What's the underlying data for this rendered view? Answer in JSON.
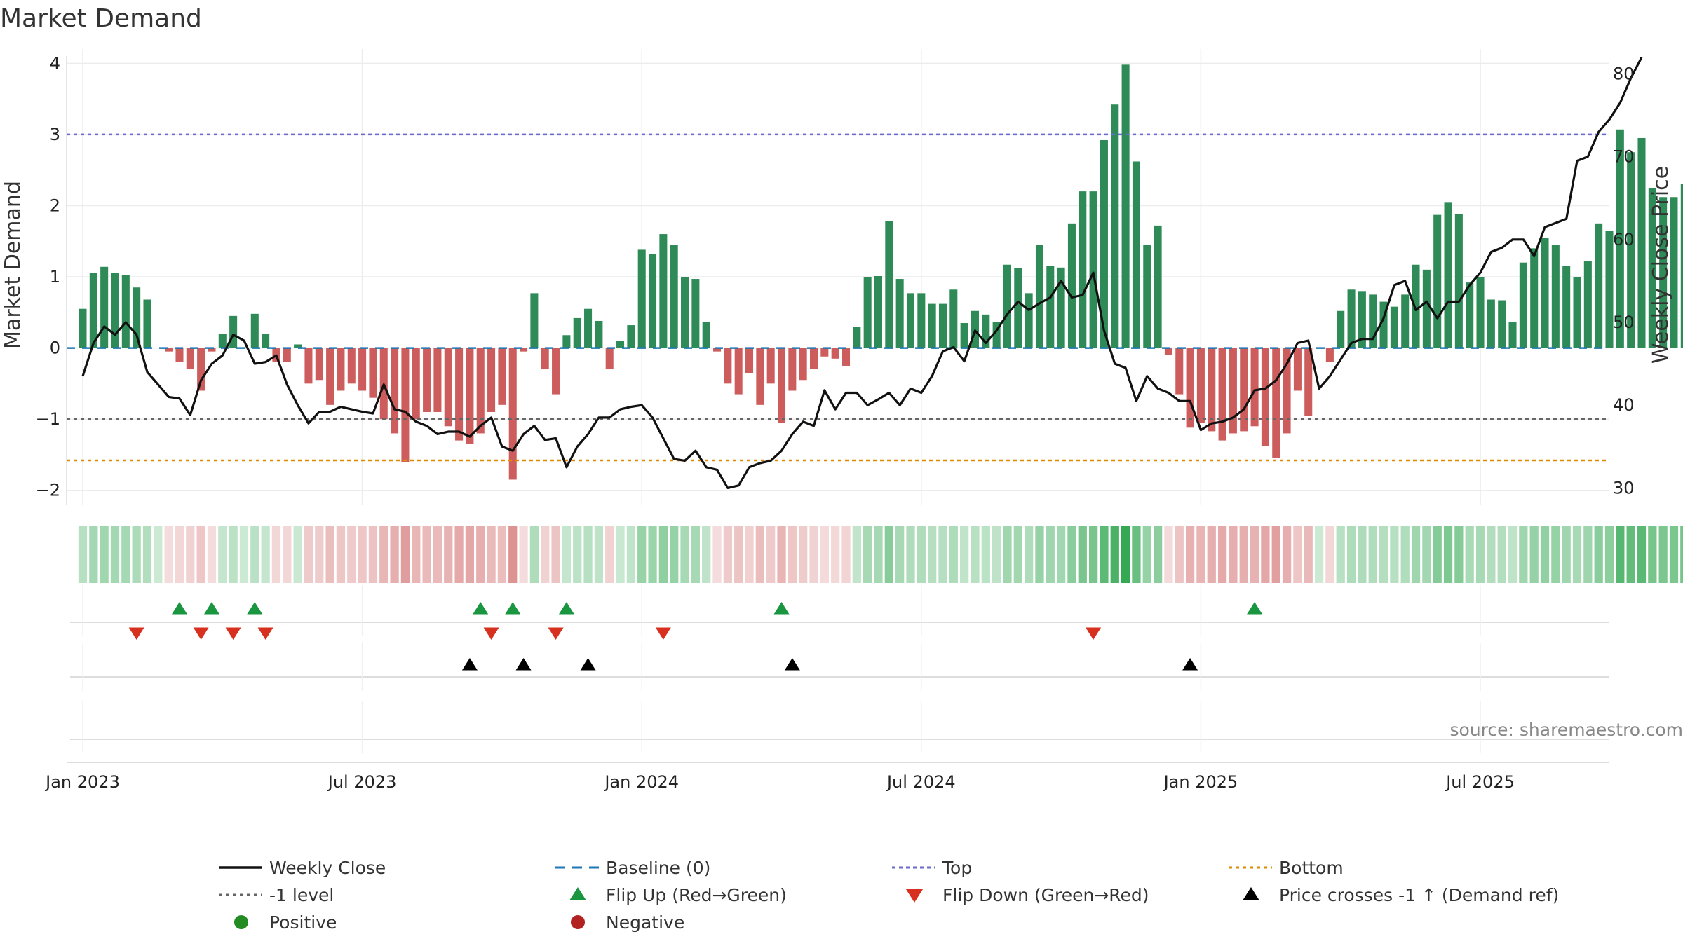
{
  "chart_data": {
    "type": "bar+line",
    "title": "Market Demand",
    "ylabel": "Market Demand",
    "y2label": "Weekly Close Price",
    "ylim": [
      -2.2,
      4.2
    ],
    "y2lim": [
      28,
      83
    ],
    "yticks": [
      4,
      3,
      2,
      1,
      0,
      -1,
      -2
    ],
    "yticks_labels": [
      "4",
      "3",
      "2",
      "1",
      "0",
      "−1",
      "−2"
    ],
    "y2ticks": [
      80,
      70,
      60,
      50,
      40,
      30
    ],
    "y2ticks_labels": [
      "80",
      "70",
      "60",
      "50",
      "40",
      "30"
    ],
    "xticks": [
      0,
      26,
      52,
      78,
      104,
      130
    ],
    "xticks_labels": [
      "Jan 2023",
      "Jul 2023",
      "Jan 2024",
      "Jul 2024",
      "Jan 2025",
      "Jul 2025"
    ],
    "x_range": [
      -1.5,
      142.0
    ],
    "reference_lines": {
      "top": 3.0,
      "minus_one": -1.0,
      "bottom": -1.58,
      "baseline": 0
    },
    "demand": [
      0.55,
      1.05,
      1.14,
      1.05,
      1.02,
      0.85,
      0.68,
      0,
      -0.05,
      -0.2,
      -0.3,
      -0.6,
      -0.05,
      0.2,
      0.45,
      0.0,
      0.48,
      0.2,
      -0.2,
      -0.2,
      0.05,
      -0.5,
      -0.45,
      -0.8,
      -0.6,
      -0.5,
      -0.6,
      -0.7,
      -1.0,
      -1.2,
      -1.6,
      -1.0,
      -0.9,
      -0.9,
      -1.1,
      -1.3,
      -1.35,
      -1.2,
      -0.9,
      -0.8,
      -1.85,
      -0.05,
      0.77,
      -0.3,
      -0.65,
      0.18,
      0.42,
      0.55,
      0.38,
      -0.3,
      0.1,
      0.32,
      1.38,
      1.32,
      1.6,
      1.45,
      1.0,
      0.97,
      0.37,
      -0.05,
      -0.5,
      -0.65,
      -0.35,
      -0.8,
      -0.5,
      -1.05,
      -0.6,
      -0.45,
      -0.3,
      -0.12,
      -0.15,
      -0.25,
      0.3,
      1.0,
      1.01,
      1.78,
      0.97,
      0.77,
      0.77,
      0.62,
      0.62,
      0.82,
      0.35,
      0.52,
      0.47,
      0.37,
      1.17,
      1.12,
      0.77,
      1.45,
      1.15,
      1.13,
      1.75,
      2.2,
      2.2,
      2.92,
      3.42,
      3.98,
      2.62,
      1.45,
      1.72,
      -0.1,
      -0.65,
      -1.12,
      -1.05,
      -1.17,
      -1.3,
      -1.2,
      -1.17,
      -1.1,
      -1.38,
      -1.55,
      -1.2,
      -0.6,
      -0.95,
      0,
      -0.2,
      0.52,
      0.82,
      0.8,
      0.75,
      0.65,
      0.58,
      0.75,
      1.17,
      1.1,
      1.87,
      2.05,
      1.88,
      0.92,
      1.0,
      0.68,
      0.67,
      0.37,
      1.2,
      1.4,
      1.55,
      1.45,
      1.15,
      1.0,
      1.22,
      1.75,
      1.65,
      3.07,
      2.75,
      2.95,
      2.25,
      2.12,
      2.12,
      2.3
    ],
    "weekly_close": [
      43.5,
      47.5,
      49.5,
      48.5,
      50.0,
      48.5,
      44.0,
      42.5,
      41.0,
      40.8,
      38.8,
      43.0,
      45.0,
      46.0,
      48.5,
      47.8,
      45.0,
      45.2,
      46.0,
      42.5,
      40.0,
      37.8,
      39.2,
      39.2,
      39.8,
      39.5,
      39.2,
      39.0,
      42.5,
      39.5,
      39.2,
      38.0,
      37.5,
      36.5,
      36.8,
      36.8,
      36.2,
      37.5,
      38.5,
      35.0,
      34.5,
      36.5,
      37.5,
      35.8,
      36.0,
      32.5,
      35.0,
      36.5,
      38.5,
      38.5,
      39.5,
      39.8,
      40.0,
      38.5,
      36.0,
      33.5,
      33.3,
      34.5,
      32.5,
      32.2,
      30.0,
      30.3,
      32.5,
      33.0,
      33.3,
      34.5,
      36.5,
      38.0,
      37.5,
      41.8,
      39.5,
      41.5,
      41.5,
      40.0,
      40.7,
      41.5,
      40.0,
      42.0,
      41.5,
      43.5,
      46.5,
      47.0,
      45.3,
      49.0,
      47.5,
      49.0,
      51.0,
      52.5,
      51.5,
      52.3,
      53.0,
      55.0,
      53.0,
      53.3,
      56.0,
      49.0,
      45.0,
      44.5,
      40.5,
      43.5,
      42.0,
      41.5,
      40.5,
      40.5,
      37.0,
      37.8,
      38.0,
      38.5,
      39.5,
      41.8,
      42.0,
      43.0,
      45.0,
      47.5,
      47.8,
      42.0,
      43.5,
      45.5,
      47.5,
      48.0,
      48.0,
      50.5,
      54.5,
      55.0,
      51.5,
      52.5,
      50.5,
      52.5,
      52.5,
      54.5,
      56.0,
      58.5,
      59.0,
      60.0,
      60.0,
      58.0,
      61.5,
      62.0,
      62.5,
      69.5,
      70.0,
      73.0,
      74.5,
      76.5,
      79.5,
      82.0
    ],
    "flip_up_weeks": [
      9,
      12,
      16,
      37,
      40,
      45,
      65,
      109
    ],
    "flip_down_weeks": [
      5,
      11,
      14,
      17,
      38,
      44,
      54,
      94
    ],
    "price_cross_weeks": [
      36,
      41,
      47,
      66,
      103
    ],
    "colors": {
      "bar_positive": "#2e8b57",
      "bar_negative": "#cd5c5c",
      "close_line": "#111111",
      "top_line": "#6a6acd",
      "minus_one_line": "#666666",
      "bottom_line": "#e08a00",
      "baseline": "#1f77b4",
      "flip_up": "#1a9641",
      "flip_down": "#d7301f",
      "price_cross": "#000000",
      "positive_dot": "#228b22",
      "negative_dot": "#b22222"
    },
    "legend": [
      {
        "label": "Weekly Close",
        "symbol": "line",
        "color": "#111111"
      },
      {
        "label": "Baseline (0)",
        "symbol": "dashline",
        "color": "#1f77b4"
      },
      {
        "label": "Top",
        "symbol": "dotline",
        "color": "#6a6acd"
      },
      {
        "label": "Bottom",
        "symbol": "dotline",
        "color": "#e08a00"
      },
      {
        "label": "-1 level",
        "symbol": "dotline",
        "color": "#666666"
      },
      {
        "label": "Flip Up (Red→Green)",
        "symbol": "triangle-up",
        "color": "#1a9641"
      },
      {
        "label": "Flip Down (Green→Red)",
        "symbol": "triangle-down",
        "color": "#d7301f"
      },
      {
        "label": "Price crosses -1 ↑ (Demand ref)",
        "symbol": "triangle-up",
        "color": "#000000"
      },
      {
        "label": "Positive",
        "symbol": "dot",
        "color": "#228b22"
      },
      {
        "label": "Negative",
        "symbol": "dot",
        "color": "#b22222"
      }
    ],
    "source": "source: sharemaestro.com"
  }
}
